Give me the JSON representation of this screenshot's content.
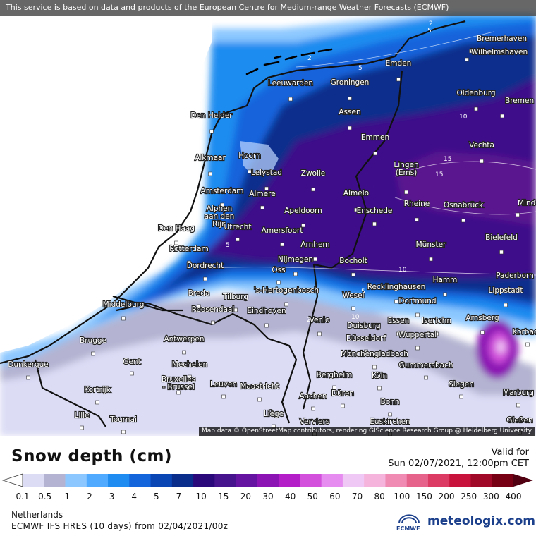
{
  "header": {
    "notice": "This service is based on data and products of the European Centre for Medium-range Weather Forecasts (ECMWF)"
  },
  "map": {
    "attribution": "Map data © OpenStreetMap contributors, rendering GIScience Research Group @ Heidelberg University",
    "cities": [
      {
        "name": "Bremerhaven"
      },
      {
        "name": "Wilhelmshaven"
      },
      {
        "name": "Emden"
      },
      {
        "name": "Leeuwarden"
      },
      {
        "name": "Groningen"
      },
      {
        "name": "Oldenburg"
      },
      {
        "name": "Bremen"
      },
      {
        "name": "Den Helder"
      },
      {
        "name": "Assen"
      },
      {
        "name": "Emmen"
      },
      {
        "name": "Vechta"
      },
      {
        "name": "Alkmaar"
      },
      {
        "name": "Hoorn"
      },
      {
        "name": "Lelystad"
      },
      {
        "name": "Zwolle"
      },
      {
        "name": "Lingen (Ems)"
      },
      {
        "name": "Amsterdam"
      },
      {
        "name": "Almere"
      },
      {
        "name": "Almelo"
      },
      {
        "name": "Alphen aan den Rijn"
      },
      {
        "name": "Apeldoorn"
      },
      {
        "name": "Enschede"
      },
      {
        "name": "Rheine"
      },
      {
        "name": "Osnabrück"
      },
      {
        "name": "Minden"
      },
      {
        "name": "Den Haag"
      },
      {
        "name": "Utrecht"
      },
      {
        "name": "Amersfoort"
      },
      {
        "name": "Bielefeld"
      },
      {
        "name": "Rotterdam"
      },
      {
        "name": "Arnhem"
      },
      {
        "name": "Münster"
      },
      {
        "name": "Nijmegen"
      },
      {
        "name": "Dordrecht"
      },
      {
        "name": "Bocholt"
      },
      {
        "name": "Oss"
      },
      {
        "name": "Paderborn"
      },
      {
        "name": "Hamm"
      },
      {
        "name": "Breda"
      },
      {
        "name": "Tilburg"
      },
      {
        "name": "'s-Hertogenbosch"
      },
      {
        "name": "Recklinghausen"
      },
      {
        "name": "Lippstadt"
      },
      {
        "name": "Wesel"
      },
      {
        "name": "Middelburg"
      },
      {
        "name": "Roosendaal"
      },
      {
        "name": "Eindhoven"
      },
      {
        "name": "Dortmund"
      },
      {
        "name": "Arnsberg"
      },
      {
        "name": "Venlo"
      },
      {
        "name": "Essen"
      },
      {
        "name": "Iserlohn"
      },
      {
        "name": "Duisburg"
      },
      {
        "name": "Korbach"
      },
      {
        "name": "Brugge"
      },
      {
        "name": "Antwerpen"
      },
      {
        "name": "Wuppertal"
      },
      {
        "name": "Düsseldorf"
      },
      {
        "name": "Mönchengladbach"
      },
      {
        "name": "Dunkerque"
      },
      {
        "name": "Gent"
      },
      {
        "name": "Mechelen"
      },
      {
        "name": "Gummersbach"
      },
      {
        "name": "Bergheim"
      },
      {
        "name": "Bruxelles - Brussel"
      },
      {
        "name": "Leuven"
      },
      {
        "name": "Köln"
      },
      {
        "name": "Kortrijk"
      },
      {
        "name": "Maastricht"
      },
      {
        "name": "Düren"
      },
      {
        "name": "Siegen"
      },
      {
        "name": "Marburg"
      },
      {
        "name": "Aachen"
      },
      {
        "name": "Bonn"
      },
      {
        "name": "Lille"
      },
      {
        "name": "Tournai"
      },
      {
        "name": "Liège"
      },
      {
        "name": "Verviers"
      },
      {
        "name": "Euskirchen"
      },
      {
        "name": "Gießen"
      }
    ],
    "contour_labels": [
      "2",
      "5",
      "2",
      "5",
      "10",
      "15",
      "10",
      "5",
      "2",
      "5",
      "10",
      "15"
    ]
  },
  "legend": {
    "title": "Snow depth (cm)",
    "unit": "cm",
    "ticks": [
      "0.1",
      "0.5",
      "1",
      "2",
      "3",
      "4",
      "5",
      "7",
      "10",
      "15",
      "20",
      "30",
      "40",
      "50",
      "60",
      "70",
      "80",
      "100",
      "150",
      "200",
      "250",
      "300",
      "400"
    ],
    "colors": [
      "#dcdcf5",
      "#b4b4d2",
      "#8cc8ff",
      "#50aaff",
      "#1e8cf0",
      "#1464dc",
      "#0a46b4",
      "#0a2d8c",
      "#2a0a7a",
      "#46148c",
      "#6414a0",
      "#8c14b4",
      "#b41ec8",
      "#d250dc",
      "#e68cf0",
      "#f0c8f5",
      "#f5b4dc",
      "#f08cb4",
      "#e6648c",
      "#dc3c64",
      "#c8143c",
      "#a00a28",
      "#780014",
      "#500010"
    ]
  },
  "valid": {
    "label": "Valid for",
    "time": "Sun 02/07/2021, 12:00pm CET"
  },
  "footer": {
    "region": "Netherlands",
    "model": "ECMWF IFS HRES (10 days) from 02/04/2021/00z",
    "ecmwf_logo_text": "ECMWF",
    "brand": "meteologix.com"
  }
}
